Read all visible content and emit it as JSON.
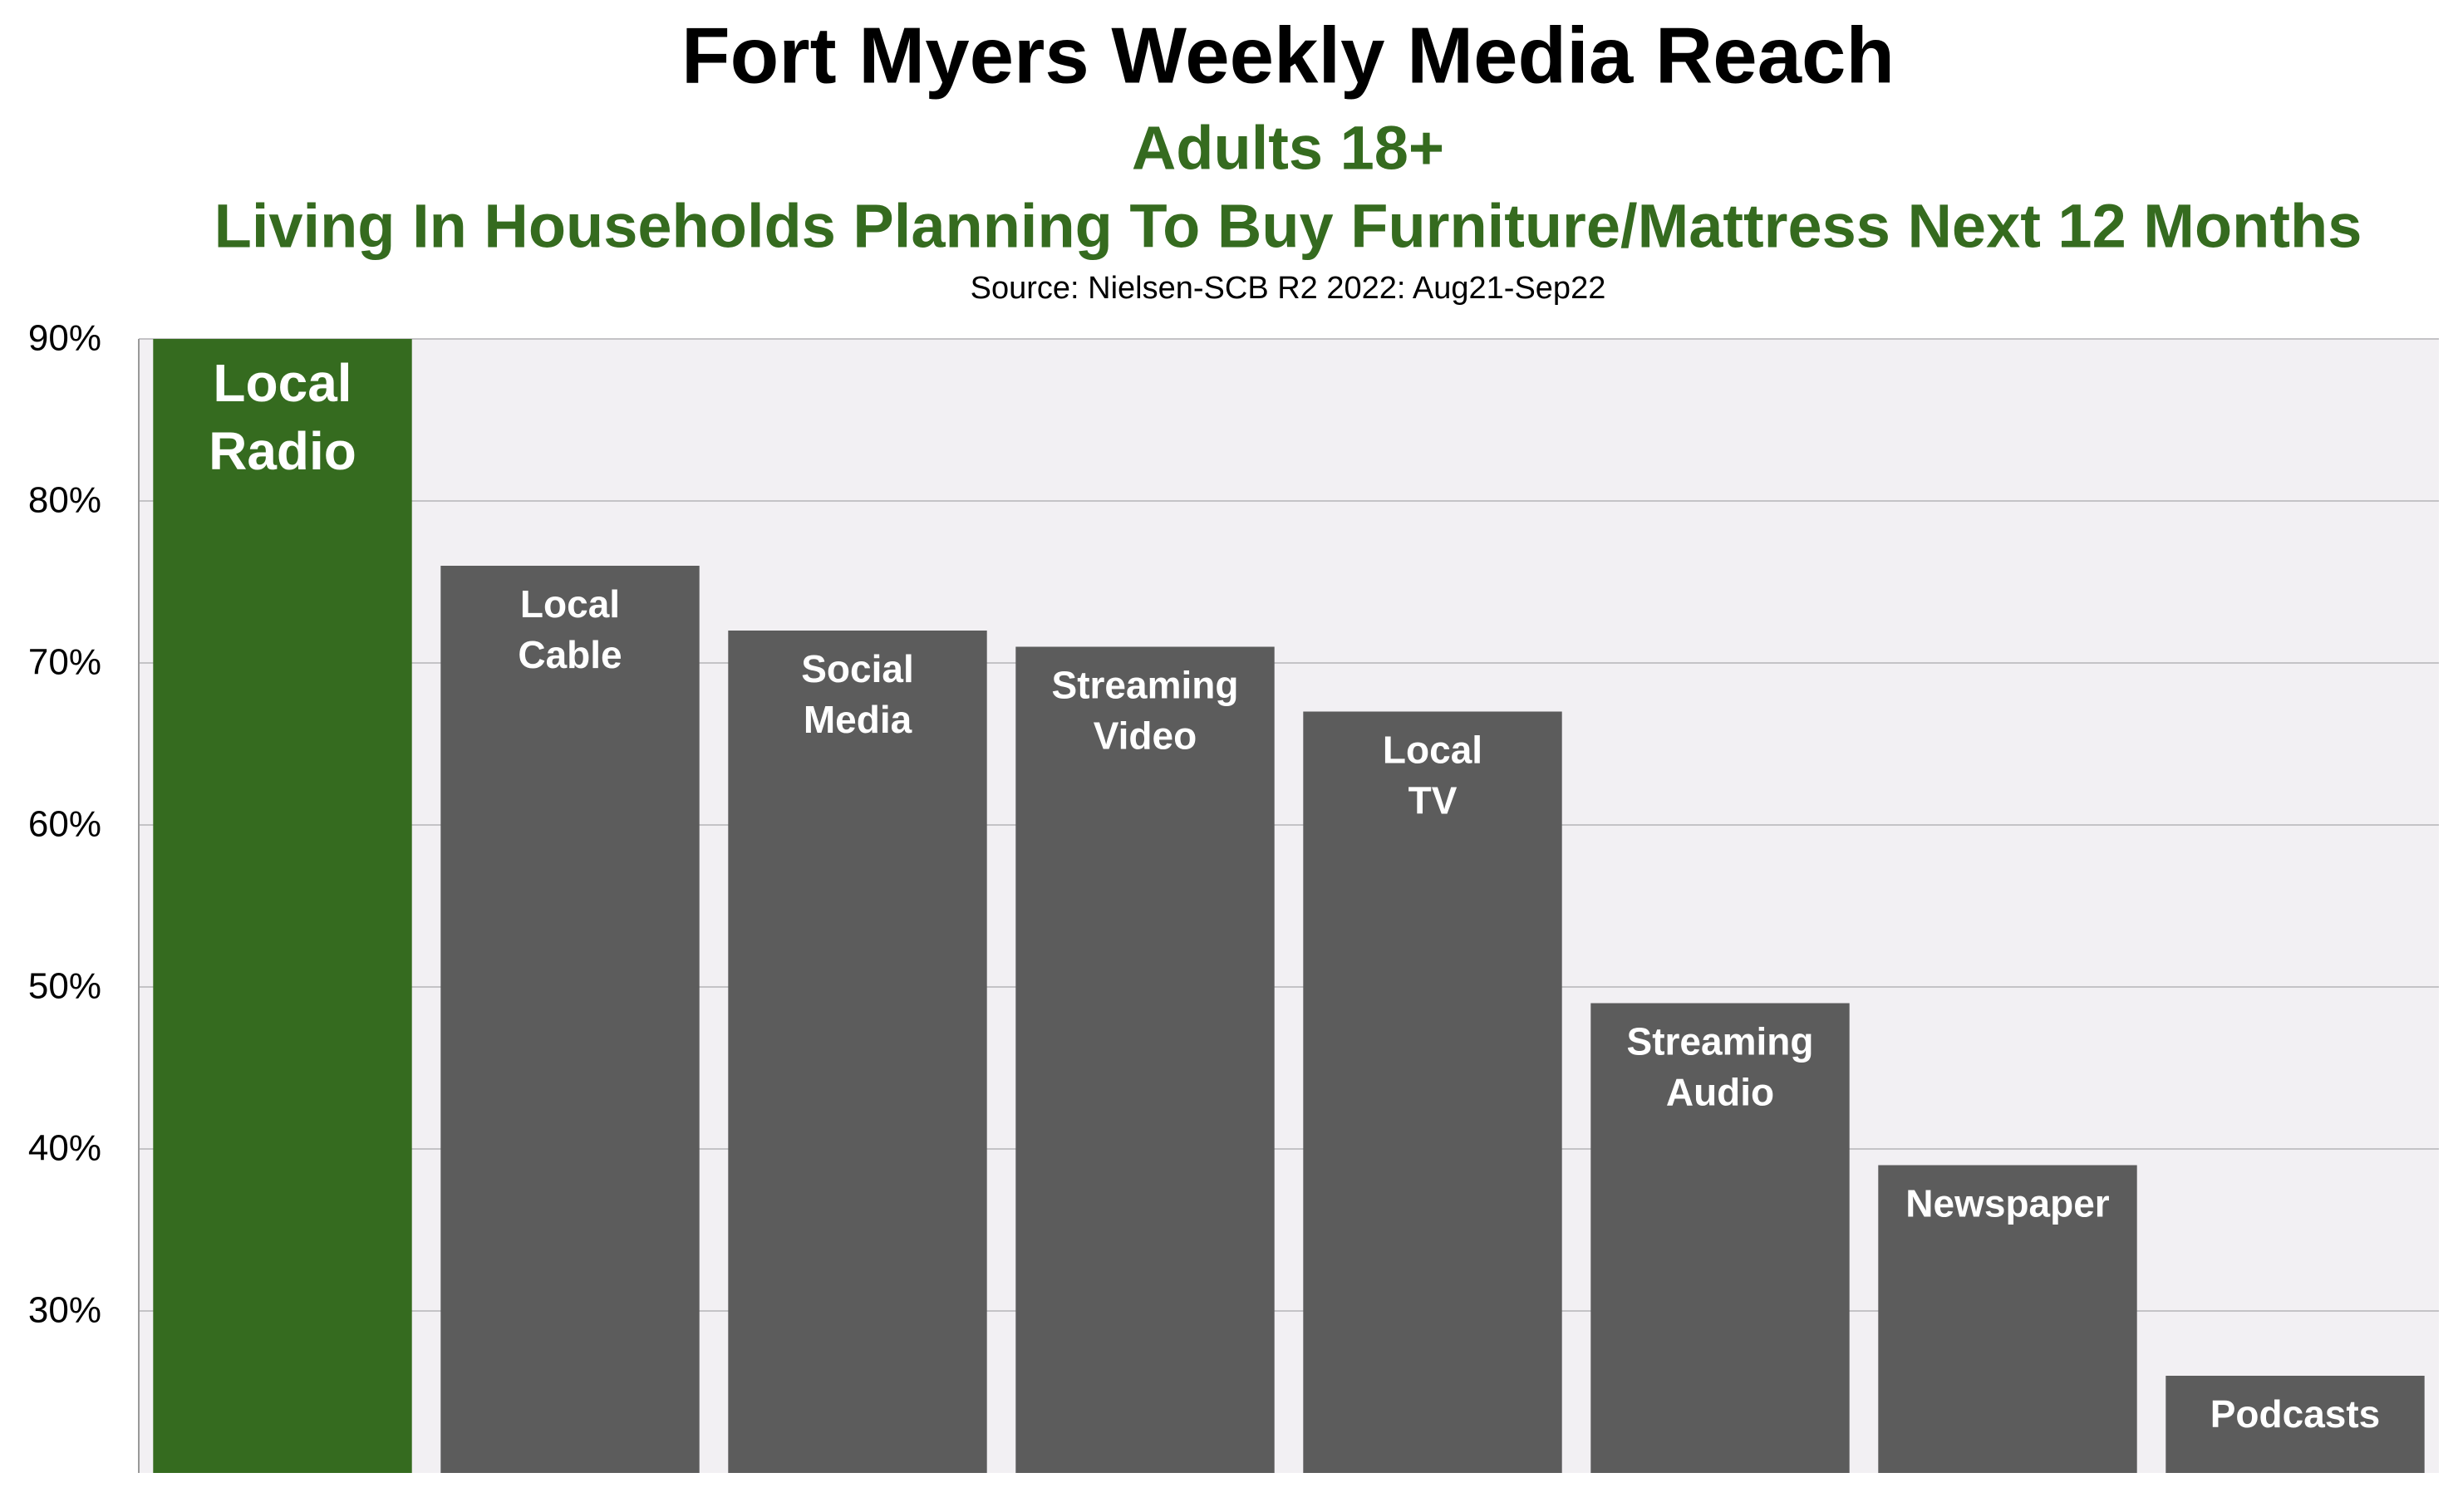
{
  "chart_data": {
    "type": "bar",
    "title": "Fort Myers Weekly Media Reach",
    "subtitle": "Adults 18+",
    "subtitle2": "Living In Households Planning To Buy Furniture/Mattress Next 12 Months",
    "source": "Source: Nielsen-SCB R2 2022:  Aug21-Sep22",
    "categories": [
      "Local Radio",
      "Local Cable",
      "Social Media",
      "Streaming Video",
      "Local TV",
      "Streaming Audio",
      "Newspaper",
      "Podcasts"
    ],
    "values": [
      90,
      76,
      72,
      71,
      67,
      49,
      39,
      26
    ],
    "colors": [
      "#356b1f",
      "#5c5c5c",
      "#5c5c5c",
      "#5c5c5c",
      "#5c5c5c",
      "#5c5c5c",
      "#5c5c5c",
      "#5c5c5c"
    ],
    "ylim": [
      20,
      90
    ],
    "yticks": [
      {
        "value": 30,
        "label": "30%"
      },
      {
        "value": 40,
        "label": "40%"
      },
      {
        "value": 50,
        "label": "50%"
      },
      {
        "value": 60,
        "label": "60%"
      },
      {
        "value": 70,
        "label": "70%"
      },
      {
        "value": 80,
        "label": "80%"
      },
      {
        "value": 90,
        "label": "90%"
      }
    ],
    "grid": true
  }
}
